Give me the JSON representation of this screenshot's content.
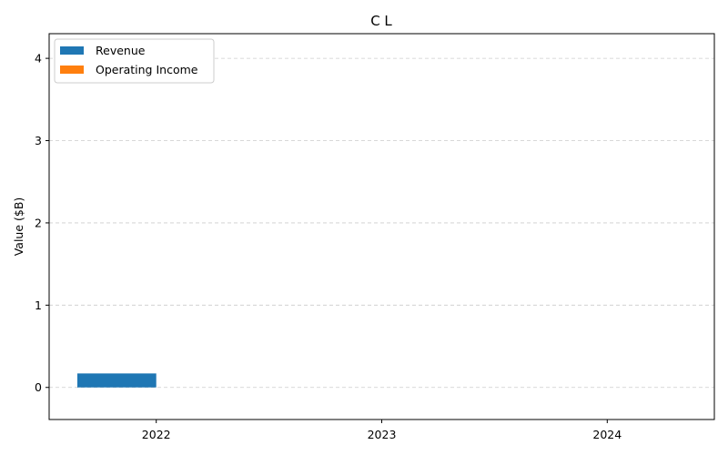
{
  "chart_data": {
    "type": "bar",
    "title": "C L",
    "xlabel": "",
    "ylabel": "Value ($B)",
    "categories": [
      "2022",
      "2023",
      "2024"
    ],
    "series": [
      {
        "name": "Revenue",
        "color": "#1f77b4",
        "values": [
          0.17,
          0,
          0
        ]
      },
      {
        "name": "Operating Income",
        "color": "#ff7f0e",
        "values": [
          0,
          0,
          0
        ]
      }
    ],
    "yticks": [
      "0",
      "1",
      "2",
      "3",
      "4"
    ],
    "ylim": [
      -0.39,
      4.3
    ],
    "grid": true,
    "legend_position": "top-left"
  }
}
